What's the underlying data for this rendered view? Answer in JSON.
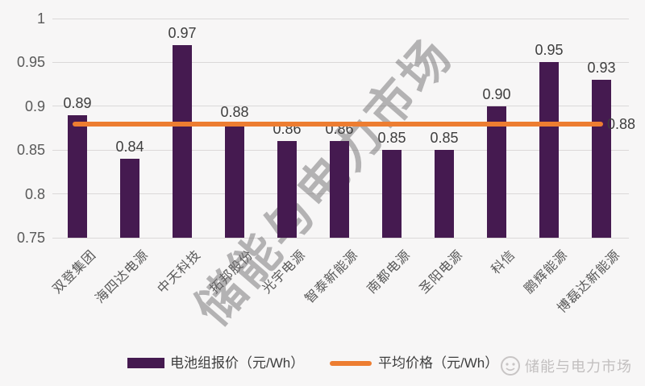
{
  "chart_data": {
    "type": "bar",
    "title": "",
    "categories": [
      "双登集团",
      "海四达电源",
      "中天科技",
      "拓邦股份",
      "光宇电源",
      "智泰新能源",
      "南都电源",
      "圣阳电源",
      "科信",
      "鹏辉能源",
      "博磊达新能源"
    ],
    "values": [
      0.89,
      0.84,
      0.97,
      0.88,
      0.86,
      0.86,
      0.85,
      0.85,
      0.9,
      0.95,
      0.93
    ],
    "value_labels": [
      "0.89",
      "0.84",
      "0.97",
      "0.88",
      "0.86",
      "0.86",
      "0.85",
      "0.85",
      "0.90",
      "0.95",
      "0.93"
    ],
    "average_line": {
      "value": 0.88,
      "label": "0.88"
    },
    "ylim": [
      0.75,
      1
    ],
    "ytick_labels": [
      "1",
      "0.95",
      "0.9",
      "0.85",
      "0.8",
      "0.75"
    ],
    "ytick_values": [
      1,
      0.95,
      0.9,
      0.85,
      0.8,
      0.75
    ],
    "grid": true,
    "legend_position": "bottom",
    "legend": [
      {
        "label": "电池组报价（元/Wh）",
        "type": "bar",
        "color": "#451a50"
      },
      {
        "label": "平均价格（元/Wh）",
        "type": "line",
        "color": "#ed7d31"
      }
    ]
  },
  "watermark": {
    "text": "储能与电力市场"
  },
  "brand": {
    "text": "储能与电力市场"
  },
  "colors": {
    "bar": "#451a50",
    "average_line": "#ed7d31",
    "background": "#f7f6f6",
    "gridline": "#dbd8d8",
    "axis_text": "#595959",
    "value_text": "#3e3e3e",
    "watermark_text": "#706e70",
    "brand_text": "#c2bfbf"
  }
}
